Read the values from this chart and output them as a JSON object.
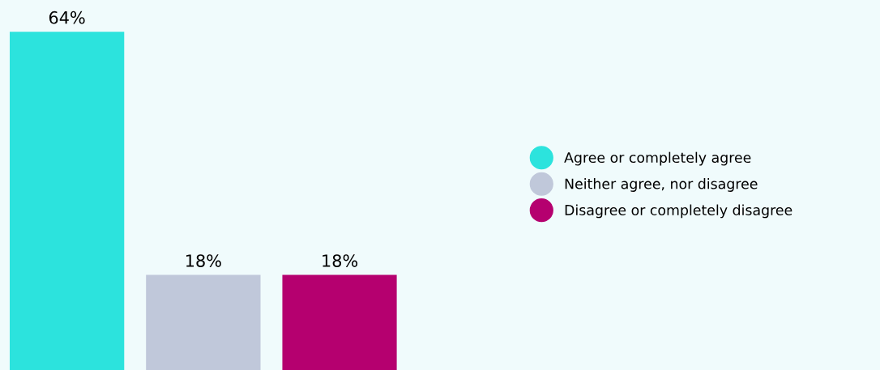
{
  "chart_data": {
    "type": "bar",
    "categories": [
      null,
      null,
      null
    ],
    "stacked": true,
    "series": [
      {
        "name": "Agree or completely agree",
        "color": "#2ce3dd",
        "values": [
          64,
          0,
          0
        ],
        "value_labels": [
          "64%",
          null,
          null
        ]
      },
      {
        "name": "Neither agree, nor disagree",
        "color": "#c0c8da",
        "values": [
          0,
          18,
          0
        ],
        "value_labels": [
          null,
          "18%",
          null
        ]
      },
      {
        "name": "Disagree or completely disagree",
        "color": "#b5006f",
        "values": [
          0,
          0,
          18
        ],
        "value_labels": [
          null,
          null,
          "18%"
        ]
      }
    ],
    "ylim": [
      0,
      70
    ],
    "grid": false,
    "legend": "right"
  }
}
